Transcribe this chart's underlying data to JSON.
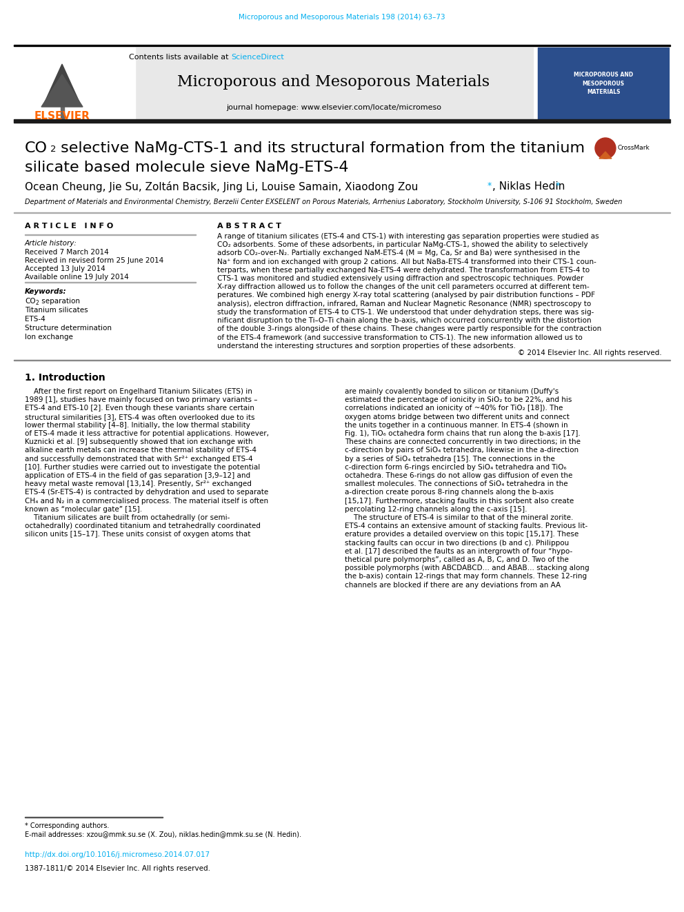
{
  "journal_ref": "Microporous and Mesoporous Materials 198 (2014) 63–73",
  "journal_ref_color": "#00AEEF",
  "sciencedirect_color": "#00AEEF",
  "journal_name": "Microporous and Mesoporous Materials",
  "journal_homepage": "journal homepage: www.elsevier.com/locate/micromeso",
  "elsevier_color": "#FF6600",
  "header_bg": "#E8E8E8",
  "dark_bar_color": "#1A1A1A",
  "affiliation": "Department of Materials and Environmental Chemistry, Berzelii Center EXSELENT on Porous Materials, Arrhenius Laboratory, Stockholm University, S-106 91 Stockholm, Sweden",
  "article_info_title": "A R T I C L E   I N F O",
  "abstract_title": "A B S T R A C T",
  "article_history_label": "Article history:",
  "received": "Received 7 March 2014",
  "revised": "Received in revised form 25 June 2014",
  "accepted": "Accepted 13 July 2014",
  "available": "Available online 19 July 2014",
  "keywords_label": "Keywords:",
  "keyword2": "Titanium silicates",
  "keyword3": "ETS-4",
  "keyword4": "Structure determination",
  "keyword5": "Ion exchange",
  "copyright": "© 2014 Elsevier Inc. All rights reserved.",
  "section1_title": "1. Introduction",
  "footnote": "* Corresponding authors.",
  "footnote2": "E-mail addresses: xzou@mmk.su.se (X. Zou), niklas.hedin@mmk.su.se (N. Hedin).",
  "doi": "http://dx.doi.org/10.1016/j.micromeso.2014.07.017",
  "issn": "1387-1811/© 2014 Elsevier Inc. All rights reserved.",
  "doi_color": "#00AEEF",
  "bg_color": "#FFFFFF",
  "link_color": "#00AEEF",
  "abstract_lines": [
    "A range of titanium silicates (ETS-4 and CTS-1) with interesting gas separation properties were studied as",
    "CO₂ adsorbents. Some of these adsorbents, in particular NaMg-CTS-1, showed the ability to selectively",
    "adsorb CO₂-over-N₂. Partially exchanged NaM-ETS-4 (M = Mg, Ca, Sr and Ba) were synthesised in the",
    "Na⁺ form and ion exchanged with group 2 cations. All but NaBa-ETS-4 transformed into their CTS-1 coun-",
    "terparts, when these partially exchanged Na-ETS-4 were dehydrated. The transformation from ETS-4 to",
    "CTS-1 was monitored and studied extensively using diffraction and spectroscopic techniques. Powder",
    "X-ray diffraction allowed us to follow the changes of the unit cell parameters occurred at different tem-",
    "peratures. We combined high energy X-ray total scattering (analysed by pair distribution functions – PDF",
    "analysis), electron diffraction, infrared, Raman and Nuclear Magnetic Resonance (NMR) spectroscopy to",
    "study the transformation of ETS-4 to CTS-1. We understood that under dehydration steps, there was sig-",
    "nificant disruption to the Ti–O–Ti chain along the b-axis, which occurred concurrently with the distortion",
    "of the double 3-rings alongside of these chains. These changes were partly responsible for the contraction",
    "of the ETS-4 framework (and successive transformation to CTS-1). The new information allowed us to",
    "understand the interesting structures and sorption properties of these adsorbents."
  ],
  "intro_col1_lines": [
    "    After the first report on Engelhard Titanium Silicates (ETS) in",
    "1989 [1], studies have mainly focused on two primary variants –",
    "ETS-4 and ETS-10 [2]. Even though these variants share certain",
    "structural similarities [3], ETS-4 was often overlooked due to its",
    "lower thermal stability [4–8]. Initially, the low thermal stability",
    "of ETS-4 made it less attractive for potential applications. However,",
    "Kuznicki et al. [9] subsequently showed that ion exchange with",
    "alkaline earth metals can increase the thermal stability of ETS-4",
    "and successfully demonstrated that with Sr²⁺ exchanged ETS-4",
    "[10]. Further studies were carried out to investigate the potential",
    "application of ETS-4 in the field of gas separation [3,9–12] and",
    "heavy metal waste removal [13,14]. Presently, Sr²⁺ exchanged",
    "ETS-4 (Sr-ETS-4) is contracted by dehydration and used to separate",
    "CH₄ and N₂ in a commercialised process. The material itself is often",
    "known as “molecular gate” [15].",
    "    Titanium silicates are built from octahedrally (or semi-",
    "octahedrally) coordinated titanium and tetrahedrally coordinated",
    "silicon units [15–17]. These units consist of oxygen atoms that"
  ],
  "intro_col2_lines": [
    "are mainly covalently bonded to silicon or titanium (Duffy's",
    "estimated the percentage of ionicity in SiO₂ to be 22%, and his",
    "correlations indicated an ionicity of ~40% for TiO₂ [18]). The",
    "oxygen atoms bridge between two different units and connect",
    "the units together in a continuous manner. In ETS-4 (shown in",
    "Fig. 1), TiO₆ octahedra form chains that run along the b-axis [17].",
    "These chains are connected concurrently in two directions; in the",
    "c-direction by pairs of SiO₄ tetrahedra, likewise in the a-direction",
    "by a series of SiO₄ tetrahedra [15]. The connections in the",
    "c-direction form 6-rings encircled by SiO₄ tetrahedra and TiO₆",
    "octahedra. These 6-rings do not allow gas diffusion of even the",
    "smallest molecules. The connections of SiO₄ tetrahedra in the",
    "a-direction create porous 8-ring channels along the b-axis",
    "[15,17]. Furthermore, stacking faults in this sorbent also create",
    "percolating 12-ring channels along the c-axis [15].",
    "    The structure of ETS-4 is similar to that of the mineral zorite.",
    "ETS-4 contains an extensive amount of stacking faults. Previous lit-",
    "erature provides a detailed overview on this topic [15,17]. These",
    "stacking faults can occur in two directions (b and c). Philippou",
    "et al. [17] described the faults as an intergrowth of four “hypo-",
    "thetical pure polymorphs”, called as A, B, C, and D. Two of the",
    "possible polymorphs (with ABCDABCD… and ABAB… stacking along",
    "the b-axis) contain 12-rings that may form channels. These 12-ring",
    "channels are blocked if there are any deviations from an AA"
  ]
}
